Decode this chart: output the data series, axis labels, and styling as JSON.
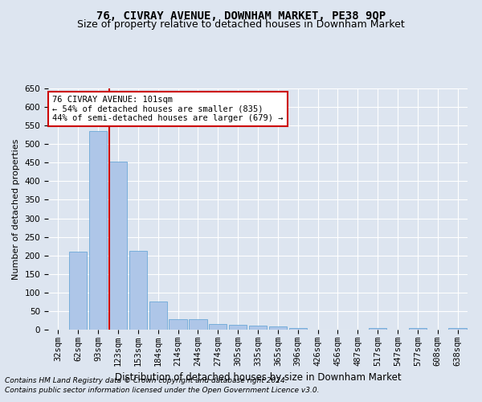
{
  "title1": "76, CIVRAY AVENUE, DOWNHAM MARKET, PE38 9QP",
  "title2": "Size of property relative to detached houses in Downham Market",
  "xlabel": "Distribution of detached houses by size in Downham Market",
  "ylabel": "Number of detached properties",
  "categories": [
    "32sqm",
    "62sqm",
    "93sqm",
    "123sqm",
    "153sqm",
    "184sqm",
    "214sqm",
    "244sqm",
    "274sqm",
    "305sqm",
    "335sqm",
    "365sqm",
    "396sqm",
    "426sqm",
    "456sqm",
    "487sqm",
    "517sqm",
    "547sqm",
    "577sqm",
    "608sqm",
    "638sqm"
  ],
  "values": [
    0,
    210,
    535,
    452,
    212,
    75,
    28,
    28,
    16,
    13,
    10,
    8,
    5,
    0,
    0,
    0,
    5,
    0,
    5,
    0,
    5
  ],
  "bar_color": "#aec6e8",
  "bar_edge_color": "#5a9fd4",
  "vline_color": "#cc0000",
  "vline_pos": 2.55,
  "ylim": [
    0,
    650
  ],
  "yticks": [
    0,
    50,
    100,
    150,
    200,
    250,
    300,
    350,
    400,
    450,
    500,
    550,
    600,
    650
  ],
  "annotation_text": "76 CIVRAY AVENUE: 101sqm\n← 54% of detached houses are smaller (835)\n44% of semi-detached houses are larger (679) →",
  "annotation_box_color": "#ffffff",
  "annotation_box_edge_color": "#cc0000",
  "footnote1": "Contains HM Land Registry data © Crown copyright and database right 2024.",
  "footnote2": "Contains public sector information licensed under the Open Government Licence v3.0.",
  "background_color": "#dde5f0",
  "plot_background_color": "#dde5f0",
  "grid_color": "#ffffff",
  "title1_fontsize": 10,
  "title2_fontsize": 9,
  "xlabel_fontsize": 8.5,
  "ylabel_fontsize": 8,
  "tick_fontsize": 7.5,
  "annotation_fontsize": 7.5,
  "footnote_fontsize": 6.5
}
